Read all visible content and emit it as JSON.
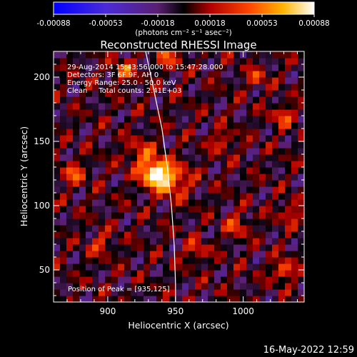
{
  "chart_data": {
    "type": "heatmap",
    "title": "Reconstructed RHESSI Image",
    "xlabel": "Heliocentric X (arcsec)",
    "ylabel": "Heliocentric Y (arcsec)",
    "xlim": [
      860,
      1045
    ],
    "ylim": [
      25,
      220
    ],
    "x_ticks": [
      900,
      950,
      1000
    ],
    "y_ticks": [
      50,
      100,
      150,
      200
    ],
    "colorbar": {
      "ticks": [
        "-0.00088",
        "-0.00053",
        "-0.00018",
        "0.00018",
        "0.00053",
        "0.00088"
      ],
      "range": [
        -0.00088,
        0.00088
      ],
      "unit_label": "(photons cm⁻² s⁻¹ asec⁻²)"
    },
    "annotations": [
      "29-Aug-2014 15:43:56.000 to 15:47:28.000",
      "Detectors: 3F 6F 9F, AH 0",
      "Energy Range: 25.0 - 50.0 keV",
      "Clean     Total counts: 2.41E+03"
    ],
    "peak_label": "Position of Peak = [935,125]",
    "peak": {
      "x": 935,
      "y": 125,
      "value": 0.00088
    },
    "blobs": [
      {
        "x": 935,
        "y": 125,
        "amp": 0.00088,
        "sigma": 7
      },
      {
        "x": 948,
        "y": 120,
        "amp": 0.0005,
        "sigma": 9
      },
      {
        "x": 925,
        "y": 140,
        "amp": 0.00035,
        "sigma": 8
      },
      {
        "x": 912,
        "y": 205,
        "amp": 0.0004,
        "sigma": 6
      },
      {
        "x": 945,
        "y": 215,
        "amp": 0.00035,
        "sigma": 6
      },
      {
        "x": 1010,
        "y": 200,
        "amp": 0.00035,
        "sigma": 5
      },
      {
        "x": 1030,
        "y": 170,
        "amp": 0.00035,
        "sigma": 6
      },
      {
        "x": 875,
        "y": 125,
        "amp": 0.0004,
        "sigma": 6
      },
      {
        "x": 995,
        "y": 85,
        "amp": 0.00035,
        "sigma": 6
      },
      {
        "x": 1035,
        "y": 95,
        "amp": 0.0003,
        "sigma": 6
      },
      {
        "x": 1030,
        "y": 50,
        "amp": 0.00055,
        "sigma": 5
      },
      {
        "x": 895,
        "y": 70,
        "amp": 0.0003,
        "sigma": 6
      },
      {
        "x": 965,
        "y": 65,
        "amp": 0.0003,
        "sigma": 6
      },
      {
        "x": 985,
        "y": 150,
        "amp": 0.0003,
        "sigma": 6
      }
    ],
    "limb_curve": [
      [
        928,
        220
      ],
      [
        934,
        190
      ],
      [
        940,
        160
      ],
      [
        944,
        130
      ],
      [
        947,
        100
      ],
      [
        949,
        70
      ],
      [
        950,
        40
      ],
      [
        950,
        25
      ]
    ]
  },
  "footer": {
    "timestamp": "16-May-2022 12:59"
  }
}
